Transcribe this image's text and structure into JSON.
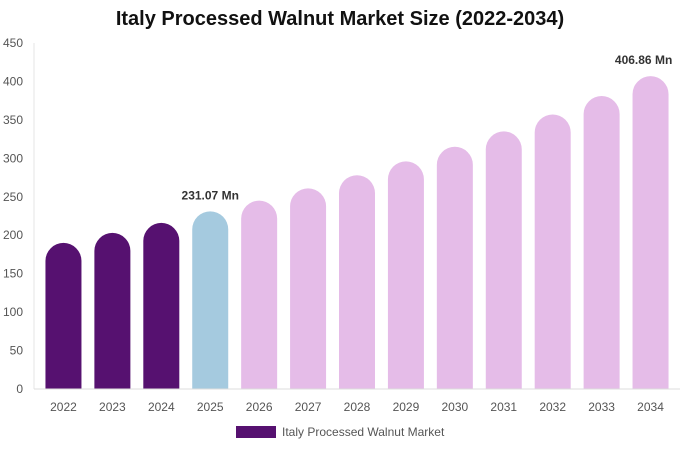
{
  "chart_data": {
    "type": "bar",
    "title": "Italy Processed Walnut Market Size (2022-2034)",
    "categories": [
      "2022",
      "2023",
      "2024",
      "2025",
      "2026",
      "2027",
      "2028",
      "2029",
      "2030",
      "2031",
      "2032",
      "2033",
      "2034"
    ],
    "series": [
      {
        "name": "Italy Processed Walnut Market",
        "values": [
          190,
          203,
          216,
          231.07,
          245,
          261,
          278,
          296,
          315,
          335,
          357,
          381,
          406.86
        ]
      }
    ],
    "data_labels": [
      {
        "category": "2025",
        "text": "231.07 Mn"
      },
      {
        "category": "2034",
        "text": "406.86 Mn"
      }
    ],
    "ylim": [
      0,
      450
    ],
    "yticks": [
      0,
      50,
      100,
      150,
      200,
      250,
      300,
      350,
      400,
      450
    ],
    "grid": false,
    "legend_position": "bottom",
    "colors": {
      "historical": "#561170",
      "current": "#a5cadf",
      "forecast": "#e5bce8",
      "legend": "#561170"
    },
    "bar_color_groups": [
      "historical",
      "historical",
      "historical",
      "current",
      "forecast",
      "forecast",
      "forecast",
      "forecast",
      "forecast",
      "forecast",
      "forecast",
      "forecast",
      "forecast"
    ]
  }
}
